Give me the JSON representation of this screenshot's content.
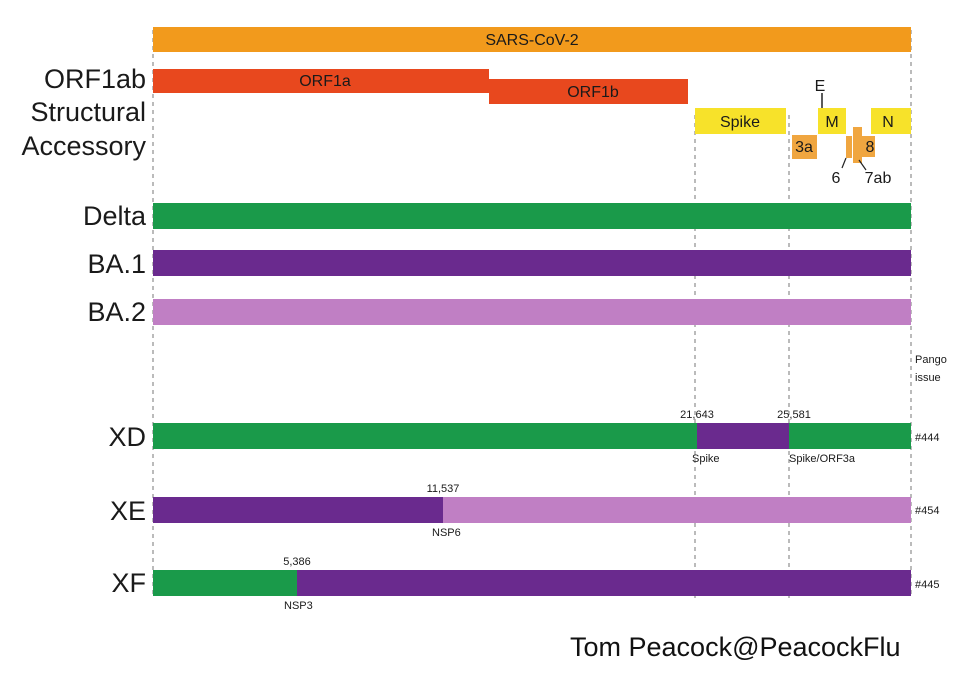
{
  "genome": {
    "title": "SARS-CoV-2",
    "orf1a": "ORF1a",
    "orf1b": "ORF1b",
    "spike": "Spike",
    "e": "E",
    "m": "M",
    "n": "N",
    "a3": "3a",
    "g6": "6",
    "g7ab": "7ab",
    "g8": "8"
  },
  "row_labels": {
    "orf1ab": "ORF1ab",
    "structural": "Structural",
    "accessory": "Accessory"
  },
  "variants": [
    {
      "name": "Delta",
      "color": "#1a9a4a"
    },
    {
      "name": "BA.1",
      "color": "#6a2a8e"
    },
    {
      "name": "BA.2",
      "color": "#c07fc4"
    }
  ],
  "pango_header": "Pango issue",
  "recombinants": [
    {
      "name": "XD",
      "issue": "#444",
      "breakpoints": [
        "21,643",
        "25,581"
      ],
      "regions": [
        "Spike",
        "Spike/ORF3a"
      ]
    },
    {
      "name": "XE",
      "issue": "#454",
      "breakpoints": [
        "11,537"
      ],
      "regions": [
        "NSP6"
      ]
    },
    {
      "name": "XF",
      "issue": "#445",
      "breakpoints": [
        "5,386"
      ],
      "regions": [
        "NSP3"
      ]
    }
  ],
  "colors": {
    "sars": "#f29a1c",
    "orf1": "#e8481e",
    "structural": "#f7e22a",
    "accessory": "#f0a640",
    "delta": "#1a9a4a",
    "ba1": "#6a2a8e",
    "ba2": "#c07fc4"
  },
  "credit": "Tom Peacock@PeacockFlu"
}
